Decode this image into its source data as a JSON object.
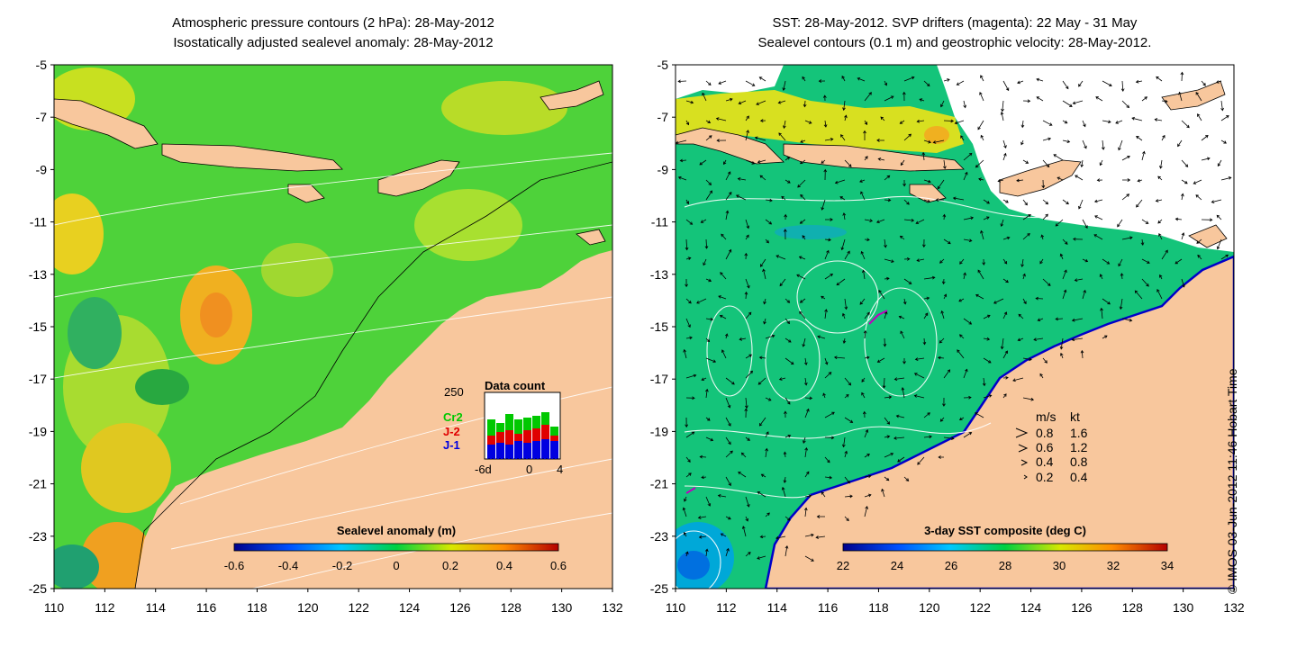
{
  "left_panel": {
    "title_line1": "Atmospheric pressure contours (2 hPa): 28-May-2012",
    "title_line2": "Isostatically adjusted sealevel anomaly: 28-May-2012",
    "colorbar_label": "Sealevel anomaly (m)",
    "colorbar_ticks": [
      "-0.6",
      "-0.4",
      "-0.2",
      "0",
      "0.2",
      "0.4",
      "0.6"
    ],
    "inset": {
      "title": "Data count",
      "ymax_label": "250",
      "legend": [
        {
          "label": "Cr2",
          "color": "#00c800"
        },
        {
          "label": "J-2",
          "color": "#e00000"
        },
        {
          "label": "J-1",
          "color": "#0000e0"
        }
      ],
      "x_labels": [
        "-6d",
        "0",
        "4"
      ]
    }
  },
  "right_panel": {
    "title_line1": "SST: 28-May-2012. SVP drifters (magenta): 22 May - 31 May",
    "title_line2": "Sealevel contours (0.1 m) and geostrophic velocity: 28-May-2012.",
    "colorbar_label": "3-day SST composite (deg C)",
    "colorbar_ticks": [
      "22",
      "24",
      "26",
      "28",
      "30",
      "32",
      "34"
    ],
    "velocity_legend": {
      "header_ms": "m/s",
      "header_kt": "kt",
      "rows": [
        {
          "ms": "0.8",
          "kt": "1.6"
        },
        {
          "ms": "0.6",
          "kt": "1.2"
        },
        {
          "ms": "0.4",
          "kt": "0.8"
        },
        {
          "ms": "0.2",
          "kt": "0.4"
        }
      ]
    }
  },
  "axes": {
    "y_labels": [
      "-5",
      "-7",
      "-9",
      "-11",
      "-13",
      "-15",
      "-17",
      "-19",
      "-21",
      "-23",
      "-25"
    ],
    "x_labels": [
      "110",
      "112",
      "114",
      "116",
      "118",
      "120",
      "122",
      "124",
      "126",
      "128",
      "130",
      "132"
    ]
  },
  "credit": "© IMOS 03-Jun-2012 11:46 Hobart Time",
  "colors": {
    "land": "#f8c79d",
    "ocean_left": "#4ed23a",
    "ocean_right": "#14c47a",
    "no_data": "#ffffff"
  }
}
